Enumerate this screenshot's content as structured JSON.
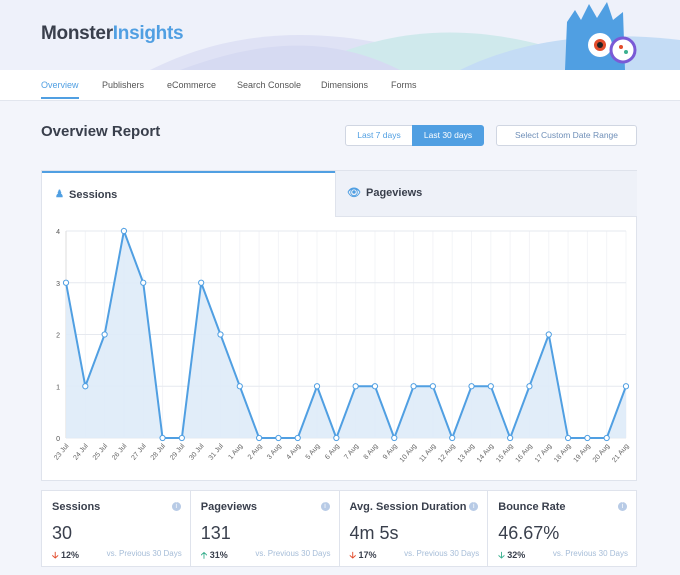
{
  "brand": {
    "part1": "Monster",
    "part2": "Insights"
  },
  "nav": [
    {
      "label": "Overview",
      "active": true
    },
    {
      "label": "Publishers"
    },
    {
      "label": "eCommerce"
    },
    {
      "label": "Search Console"
    },
    {
      "label": "Dimensions"
    },
    {
      "label": "Forms"
    }
  ],
  "page_title": "Overview Report",
  "date_buttons": {
    "last7": "Last 7 days",
    "last30": "Last 30 days",
    "custom": "Select Custom Date Range",
    "active": "last30"
  },
  "tabs": {
    "sessions": "Sessions",
    "pageviews": "Pageviews",
    "active": "sessions"
  },
  "chart_data": {
    "type": "area",
    "x": [
      "23 Jul",
      "24 Jul",
      "25 Jul",
      "26 Jul",
      "27 Jul",
      "28 Jul",
      "29 Jul",
      "30 Jul",
      "31 Jul",
      "1 Aug",
      "2 Aug",
      "3 Aug",
      "4 Aug",
      "5 Aug",
      "6 Aug",
      "7 Aug",
      "8 Aug",
      "9 Aug",
      "10 Aug",
      "11 Aug",
      "12 Aug",
      "13 Aug",
      "14 Aug",
      "15 Aug",
      "16 Aug",
      "17 Aug",
      "18 Aug",
      "19 Aug",
      "20 Aug",
      "21 Aug"
    ],
    "values": [
      3,
      1,
      2,
      4,
      3,
      0,
      0,
      3,
      2,
      1,
      0,
      0,
      0,
      1,
      0,
      1,
      1,
      0,
      1,
      1,
      0,
      1,
      1,
      0,
      1,
      2,
      0,
      0,
      0,
      1
    ],
    "yticks": [
      "0",
      "1",
      "2",
      "3",
      "4"
    ],
    "ylim": [
      0,
      4
    ],
    "grid": true,
    "color": "#509fe2",
    "fill": "#deebf8"
  },
  "metrics": [
    {
      "label": "Sessions",
      "value": "30",
      "change": "12%",
      "dir": "down",
      "color": "#e24c2c",
      "compare": "vs. Previous 30 Days"
    },
    {
      "label": "Pageviews",
      "value": "131",
      "change": "31%",
      "dir": "up",
      "color": "#3bb08f",
      "compare": "vs. Previous 30 Days"
    },
    {
      "label": "Avg. Session Duration",
      "value": "4m 5s",
      "change": "17%",
      "dir": "down",
      "color": "#e24c2c",
      "compare": "vs. Previous 30 Days"
    },
    {
      "label": "Bounce Rate",
      "value": "46.67%",
      "change": "32%",
      "dir": "down",
      "color": "#3bb08f",
      "compare": "vs. Previous 30 Days"
    }
  ]
}
